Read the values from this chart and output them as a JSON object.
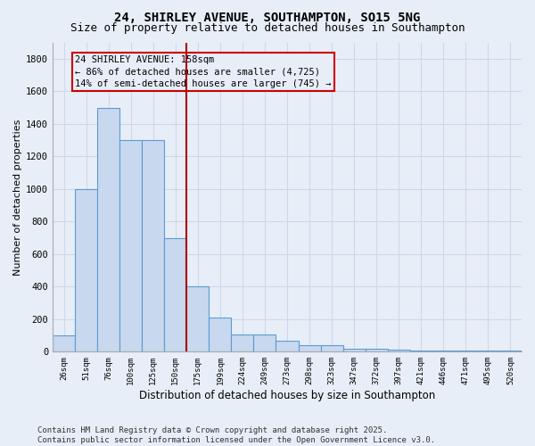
{
  "title1": "24, SHIRLEY AVENUE, SOUTHAMPTON, SO15 5NG",
  "title2": "Size of property relative to detached houses in Southampton",
  "xlabel": "Distribution of detached houses by size in Southampton",
  "ylabel": "Number of detached properties",
  "categories": [
    "26sqm",
    "51sqm",
    "76sqm",
    "100sqm",
    "125sqm",
    "150sqm",
    "175sqm",
    "199sqm",
    "224sqm",
    "249sqm",
    "273sqm",
    "298sqm",
    "323sqm",
    "347sqm",
    "372sqm",
    "397sqm",
    "421sqm",
    "446sqm",
    "471sqm",
    "495sqm",
    "520sqm"
  ],
  "values": [
    100,
    1000,
    1500,
    1300,
    1300,
    700,
    400,
    210,
    105,
    105,
    65,
    40,
    40,
    20,
    20,
    15,
    10,
    10,
    5,
    5,
    5
  ],
  "bar_color": "#c8d8ee",
  "bar_edge_color": "#5b9bd5",
  "bg_color": "#e8eef8",
  "grid_color": "#d0d8e8",
  "red_line_x": 6.0,
  "annotation_text": "24 SHIRLEY AVENUE: 158sqm\n← 86% of detached houses are smaller (4,725)\n14% of semi-detached houses are larger (745) →",
  "annotation_box_color": "#cc0000",
  "ylim": [
    0,
    1900
  ],
  "yticks": [
    0,
    200,
    400,
    600,
    800,
    1000,
    1200,
    1400,
    1600,
    1800
  ],
  "footnote": "Contains HM Land Registry data © Crown copyright and database right 2025.\nContains public sector information licensed under the Open Government Licence v3.0.",
  "title1_fontsize": 10,
  "title2_fontsize": 9,
  "annotation_fontsize": 7.5,
  "footnote_fontsize": 6.5,
  "ylabel_fontsize": 8,
  "xlabel_fontsize": 8.5
}
